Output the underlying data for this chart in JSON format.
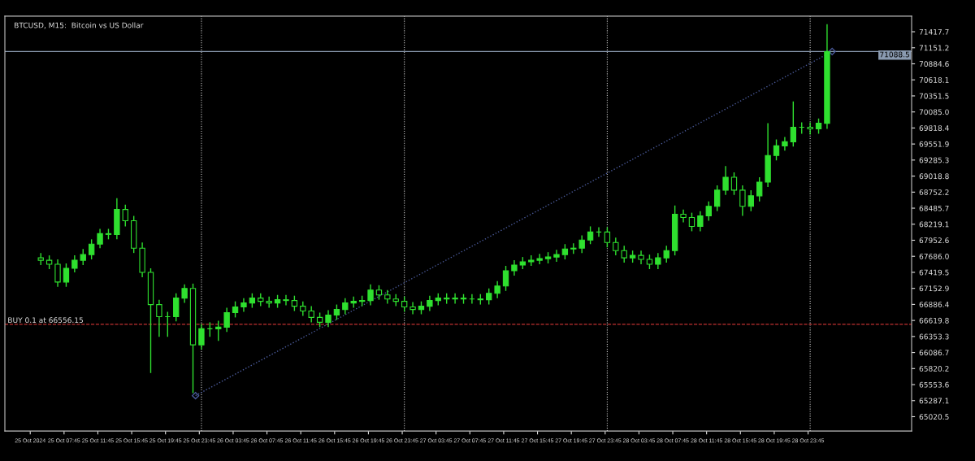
{
  "chart_data": {
    "type": "candlestick",
    "title": "BTCUSD, M15:  Bitcoin vs US Dollar",
    "x": [
      "2024-10-25T05:00",
      "2024-10-25T06:00",
      "2024-10-25T07:00",
      "2024-10-25T08:00",
      "2024-10-25T09:00",
      "2024-10-25T10:00",
      "2024-10-25T11:00",
      "2024-10-25T12:00",
      "2024-10-25T13:00",
      "2024-10-25T14:00",
      "2024-10-25T15:00",
      "2024-10-25T16:00",
      "2024-10-25T17:00",
      "2024-10-25T18:00",
      "2024-10-25T19:00",
      "2024-10-25T20:00",
      "2024-10-25T21:00",
      "2024-10-25T22:00",
      "2024-10-25T23:00",
      "2024-10-26T00:00",
      "2024-10-26T01:00",
      "2024-10-26T02:00",
      "2024-10-26T03:00",
      "2024-10-26T04:00",
      "2024-10-26T05:00",
      "2024-10-26T06:00",
      "2024-10-26T07:00",
      "2024-10-26T08:00",
      "2024-10-26T09:00",
      "2024-10-26T10:00",
      "2024-10-26T11:00",
      "2024-10-26T12:00",
      "2024-10-26T13:00",
      "2024-10-26T14:00",
      "2024-10-26T15:00",
      "2024-10-26T16:00",
      "2024-10-26T17:00",
      "2024-10-26T18:00",
      "2024-10-26T19:00",
      "2024-10-26T20:00",
      "2024-10-26T21:00",
      "2024-10-26T22:00",
      "2024-10-26T23:00",
      "2024-10-27T00:00",
      "2024-10-27T01:00",
      "2024-10-27T02:00",
      "2024-10-27T03:00",
      "2024-10-27T04:00",
      "2024-10-27T05:00",
      "2024-10-27T06:00",
      "2024-10-27T07:00",
      "2024-10-27T08:00",
      "2024-10-27T09:00",
      "2024-10-27T10:00",
      "2024-10-27T11:00",
      "2024-10-27T12:00",
      "2024-10-27T13:00",
      "2024-10-27T14:00",
      "2024-10-27T15:00",
      "2024-10-27T16:00",
      "2024-10-27T17:00",
      "2024-10-27T18:00",
      "2024-10-27T19:00",
      "2024-10-27T20:00",
      "2024-10-27T21:00",
      "2024-10-27T22:00",
      "2024-10-27T23:00",
      "2024-10-28T00:00",
      "2024-10-28T01:00",
      "2024-10-28T02:00",
      "2024-10-28T03:00",
      "2024-10-28T04:00",
      "2024-10-28T05:00",
      "2024-10-28T06:00",
      "2024-10-28T07:00",
      "2024-10-28T08:00",
      "2024-10-28T09:00",
      "2024-10-28T10:00",
      "2024-10-28T11:00",
      "2024-10-28T12:00",
      "2024-10-28T13:00",
      "2024-10-28T14:00",
      "2024-10-28T15:00",
      "2024-10-28T16:00",
      "2024-10-28T17:00",
      "2024-10-28T18:00",
      "2024-10-28T19:00",
      "2024-10-28T20:00",
      "2024-10-28T21:00",
      "2024-10-28T22:00",
      "2024-10-28T23:00",
      "2024-10-29T00:00",
      "2024-10-29T01:00",
      "2024-10-29T02:00"
    ],
    "ohlc": [
      [
        67660,
        67741,
        67540,
        67620
      ],
      [
        67620,
        67701,
        67473,
        67553
      ],
      [
        67553,
        67634,
        67179,
        67259
      ],
      [
        67259,
        67567,
        67179,
        67486
      ],
      [
        67486,
        67701,
        67419,
        67620
      ],
      [
        67620,
        67808,
        67540,
        67714
      ],
      [
        67714,
        67968,
        67634,
        67888
      ],
      [
        67888,
        68142,
        67821,
        68062
      ],
      [
        68062,
        68142,
        67968,
        68049
      ],
      [
        68049,
        68651,
        67968,
        68464
      ],
      [
        68464,
        68544,
        68183,
        68276
      ],
      [
        68276,
        68357,
        67741,
        67821
      ],
      [
        67821,
        67915,
        67339,
        67419
      ],
      [
        67419,
        67486,
        65746,
        66884
      ],
      [
        66884,
        66964,
        66348,
        66683
      ],
      [
        66683,
        66763,
        66348,
        66683
      ],
      [
        66683,
        67071,
        66603,
        66991
      ],
      [
        66991,
        67219,
        66911,
        67152
      ],
      [
        67152,
        67232,
        65411,
        66214
      ],
      [
        66214,
        66562,
        66134,
        66482
      ],
      [
        66482,
        66589,
        66348,
        66482
      ],
      [
        66482,
        66616,
        66281,
        66509
      ],
      [
        66509,
        66830,
        66429,
        66750
      ],
      [
        66750,
        66937,
        66670,
        66844
      ],
      [
        66844,
        66991,
        66763,
        66911
      ],
      [
        66911,
        67071,
        66830,
        66991
      ],
      [
        66991,
        67071,
        66857,
        66937
      ],
      [
        66937,
        67018,
        66830,
        66911
      ],
      [
        66911,
        67044,
        66830,
        66964
      ],
      [
        66964,
        67044,
        66870,
        66951
      ],
      [
        66951,
        67031,
        66777,
        66857
      ],
      [
        66857,
        66937,
        66696,
        66777
      ],
      [
        66777,
        66857,
        66589,
        66670
      ],
      [
        66670,
        66750,
        66509,
        66589
      ],
      [
        66589,
        66790,
        66509,
        66710
      ],
      [
        66710,
        66884,
        66629,
        66803
      ],
      [
        66803,
        66991,
        66723,
        66911
      ],
      [
        66911,
        67018,
        66830,
        66937
      ],
      [
        66937,
        67031,
        66857,
        66951
      ],
      [
        66951,
        67219,
        66870,
        67125
      ],
      [
        67125,
        67205,
        66964,
        67044
      ],
      [
        67044,
        67125,
        66897,
        66977
      ],
      [
        66977,
        67058,
        66857,
        66937
      ],
      [
        66937,
        67018,
        66763,
        66844
      ],
      [
        66844,
        66924,
        66723,
        66803
      ],
      [
        66803,
        66937,
        66723,
        66857
      ],
      [
        66857,
        67031,
        66777,
        66951
      ],
      [
        66951,
        67071,
        66870,
        66991
      ],
      [
        66991,
        67071,
        66897,
        66977
      ],
      [
        66977,
        67071,
        66897,
        66991
      ],
      [
        66991,
        67058,
        66897,
        66977
      ],
      [
        66977,
        67058,
        66897,
        66977
      ],
      [
        66977,
        67058,
        66884,
        66964
      ],
      [
        66964,
        67152,
        66884,
        67071
      ],
      [
        67071,
        67272,
        66991,
        67192
      ],
      [
        67192,
        67527,
        67111,
        67446
      ],
      [
        67446,
        67620,
        67366,
        67540
      ],
      [
        67540,
        67674,
        67473,
        67594
      ],
      [
        67594,
        67701,
        67527,
        67620
      ],
      [
        67620,
        67727,
        67553,
        67647
      ],
      [
        67647,
        67754,
        67567,
        67674
      ],
      [
        67674,
        67794,
        67594,
        67714
      ],
      [
        67714,
        67888,
        67634,
        67808
      ],
      [
        67808,
        67901,
        67727,
        67821
      ],
      [
        67821,
        68035,
        67741,
        67955
      ],
      [
        67955,
        68183,
        67888,
        68089
      ],
      [
        68089,
        68169,
        68009,
        68089
      ],
      [
        68089,
        68169,
        67834,
        67915
      ],
      [
        67915,
        67995,
        67701,
        67781
      ],
      [
        67781,
        67861,
        67580,
        67660
      ],
      [
        67660,
        67781,
        67580,
        67701
      ],
      [
        67701,
        67781,
        67553,
        67634
      ],
      [
        67634,
        67714,
        67473,
        67553
      ],
      [
        67553,
        67741,
        67473,
        67660
      ],
      [
        67660,
        67861,
        67580,
        67781
      ],
      [
        67781,
        68531,
        67701,
        68384
      ],
      [
        68384,
        68464,
        68250,
        68330
      ],
      [
        68330,
        68410,
        68102,
        68183
      ],
      [
        68183,
        68437,
        68102,
        68357
      ],
      [
        68357,
        68598,
        68276,
        68517
      ],
      [
        68517,
        68866,
        68437,
        68785
      ],
      [
        68785,
        69187,
        68705,
        69000
      ],
      [
        69000,
        69080,
        68705,
        68785
      ],
      [
        68785,
        68866,
        68357,
        68517
      ],
      [
        68517,
        68785,
        68437,
        68691
      ],
      [
        68691,
        69000,
        68598,
        68919
      ],
      [
        68919,
        69897,
        68839,
        69361
      ],
      [
        69361,
        69629,
        69281,
        69522
      ],
      [
        69522,
        69669,
        69441,
        69589
      ],
      [
        69589,
        70258,
        69508,
        69830
      ],
      [
        69830,
        69910,
        69722,
        69830
      ],
      [
        69830,
        69910,
        69709,
        69803
      ],
      [
        69803,
        69977,
        69722,
        69897
      ],
      [
        69897,
        71544,
        69803,
        71088
      ]
    ],
    "color": "#2fe02f",
    "series": [
      {
        "type": "line",
        "x": [
          "2024-10-25T23:18",
          "2024-10-29T02:36"
        ],
        "values": [
          65370,
          71090
        ],
        "color": "#4a5a9a",
        "line_style": "dotted"
      }
    ],
    "marker": "diamond",
    "ref_lines": [
      {
        "axis": "y",
        "value": 66556.15,
        "label": "BUY 0.1 at 66556.15",
        "color": "#c03030",
        "line_style": "dashed"
      },
      {
        "axis": "y",
        "value": 71088.5,
        "label": "71088.5",
        "color": "#8a9ab0",
        "line_style": "solid"
      },
      {
        "axis": "x",
        "value": "2024-10-26T00:00",
        "label": null,
        "color": "#c8c8c8",
        "line_style": "dotted"
      },
      {
        "axis": "x",
        "value": "2024-10-27T00:00",
        "label": null,
        "color": "#c8c8c8",
        "line_style": "dotted"
      },
      {
        "axis": "x",
        "value": "2024-10-28T00:00",
        "label": null,
        "color": "#c8c8c8",
        "line_style": "dotted"
      },
      {
        "axis": "x",
        "value": "2024-10-29T00:00",
        "label": null,
        "color": "#c8c8c8",
        "line_style": "dotted"
      }
    ],
    "xlim": [
      "2024-10-25T00:45",
      "2024-10-29T12:00"
    ],
    "xticks": [
      {
        "value": "2024-10-25T03:45",
        "label": "25 Oct 2024"
      },
      {
        "value": "2024-10-25T07:45",
        "label": "25 Oct 07:45"
      },
      {
        "value": "2024-10-25T11:45",
        "label": "25 Oct 11:45"
      },
      {
        "value": "2024-10-25T15:45",
        "label": "25 Oct 15:45"
      },
      {
        "value": "2024-10-25T19:45",
        "label": "25 Oct 19:45"
      },
      {
        "value": "2024-10-25T23:45",
        "label": "25 Oct 23:45"
      },
      {
        "value": "2024-10-26T03:45",
        "label": "26 Oct 03:45"
      },
      {
        "value": "2024-10-26T07:45",
        "label": "26 Oct 07:45"
      },
      {
        "value": "2024-10-26T11:45",
        "label": "26 Oct 11:45"
      },
      {
        "value": "2024-10-26T15:45",
        "label": "26 Oct 15:45"
      },
      {
        "value": "2024-10-26T19:45",
        "label": "26 Oct 19:45"
      },
      {
        "value": "2024-10-26T23:45",
        "label": "26 Oct 23:45"
      },
      {
        "value": "2024-10-27T03:45",
        "label": "27 Oct 03:45"
      },
      {
        "value": "2024-10-27T07:45",
        "label": "27 Oct 07:45"
      },
      {
        "value": "2024-10-27T11:45",
        "label": "27 Oct 11:45"
      },
      {
        "value": "2024-10-27T15:45",
        "label": "27 Oct 15:45"
      },
      {
        "value": "2024-10-27T19:45",
        "label": "27 Oct 19:45"
      },
      {
        "value": "2024-10-27T23:45",
        "label": "27 Oct 23:45"
      },
      {
        "value": "2024-10-28T03:45",
        "label": "28 Oct 03:45"
      },
      {
        "value": "2024-10-28T07:45",
        "label": "28 Oct 07:45"
      },
      {
        "value": "2024-10-28T11:45",
        "label": "28 Oct 11:45"
      },
      {
        "value": "2024-10-28T15:45",
        "label": "28 Oct 15:45"
      },
      {
        "value": "2024-10-28T19:45",
        "label": "28 Oct 19:45"
      },
      {
        "value": "2024-10-28T23:45",
        "label": "28 Oct 23:45"
      }
    ],
    "ylim": [
      64782,
      71677
    ],
    "yticks": [
      65020.5,
      65287.1,
      65553.6,
      65820.2,
      66086.7,
      66353.3,
      66619.8,
      66886.4,
      67152.9,
      67419.5,
      {
        "value": 67686,
        "label": "67686.0"
      },
      67952.6,
      68219.1,
      68485.7,
      68752.2,
      69018.8,
      69285.3,
      69551.9,
      69818.4,
      {
        "value": 70085,
        "label": "70085.0"
      },
      70351.5,
      70618.1,
      70884.6,
      71151.2,
      71417.7
    ],
    "grid": false
  }
}
